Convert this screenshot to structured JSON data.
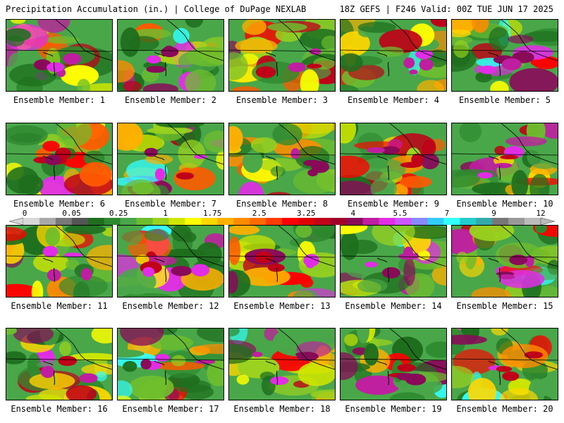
{
  "header": {
    "title": "Precipitation Accumulation (in.) | College of DuPage NEXLAB",
    "run_info": "18Z GEFS | F246 Valid: 00Z TUE JUN 17 2025"
  },
  "colorbar": {
    "tick_labels": [
      "0",
      "0.05",
      "0.25",
      "1",
      "1.75",
      "2.5",
      "3.25",
      "4",
      "5.5",
      "7",
      "9",
      "12"
    ],
    "colors": [
      "#d8d8d8",
      "#a8a8a8",
      "#787878",
      "#555555",
      "#1e6e1e",
      "#2f8a2f",
      "#49a649",
      "#6dbd2e",
      "#9ad21f",
      "#cfe600",
      "#ffff00",
      "#ffd700",
      "#ffb000",
      "#ff8c00",
      "#ff6a00",
      "#ff3c00",
      "#ff0000",
      "#e00000",
      "#c00018",
      "#a0002a",
      "#8a0a5a",
      "#c01ea0",
      "#e22de6",
      "#cc55ff",
      "#8888ff",
      "#33ccff",
      "#33ffff",
      "#22cccc",
      "#33aaaa",
      "#777777",
      "#999999",
      "#bbbbbb"
    ]
  },
  "members": [
    {
      "label": "Ensemble Member: 1"
    },
    {
      "label": "Ensemble Member: 2"
    },
    {
      "label": "Ensemble Member: 3"
    },
    {
      "label": "Ensemble Member: 4"
    },
    {
      "label": "Ensemble Member: 5"
    },
    {
      "label": "Ensemble Member: 6"
    },
    {
      "label": "Ensemble Member: 7"
    },
    {
      "label": "Ensemble Member: 8"
    },
    {
      "label": "Ensemble Member: 9"
    },
    {
      "label": "Ensemble Member: 10"
    },
    {
      "label": "Ensemble Member: 11"
    },
    {
      "label": "Ensemble Member: 12"
    },
    {
      "label": "Ensemble Member: 13"
    },
    {
      "label": "Ensemble Member: 14"
    },
    {
      "label": "Ensemble Member: 15"
    },
    {
      "label": "Ensemble Member: 16"
    },
    {
      "label": "Ensemble Member: 17"
    },
    {
      "label": "Ensemble Member: 18"
    },
    {
      "label": "Ensemble Member: 19"
    },
    {
      "label": "Ensemble Member: 20"
    }
  ]
}
